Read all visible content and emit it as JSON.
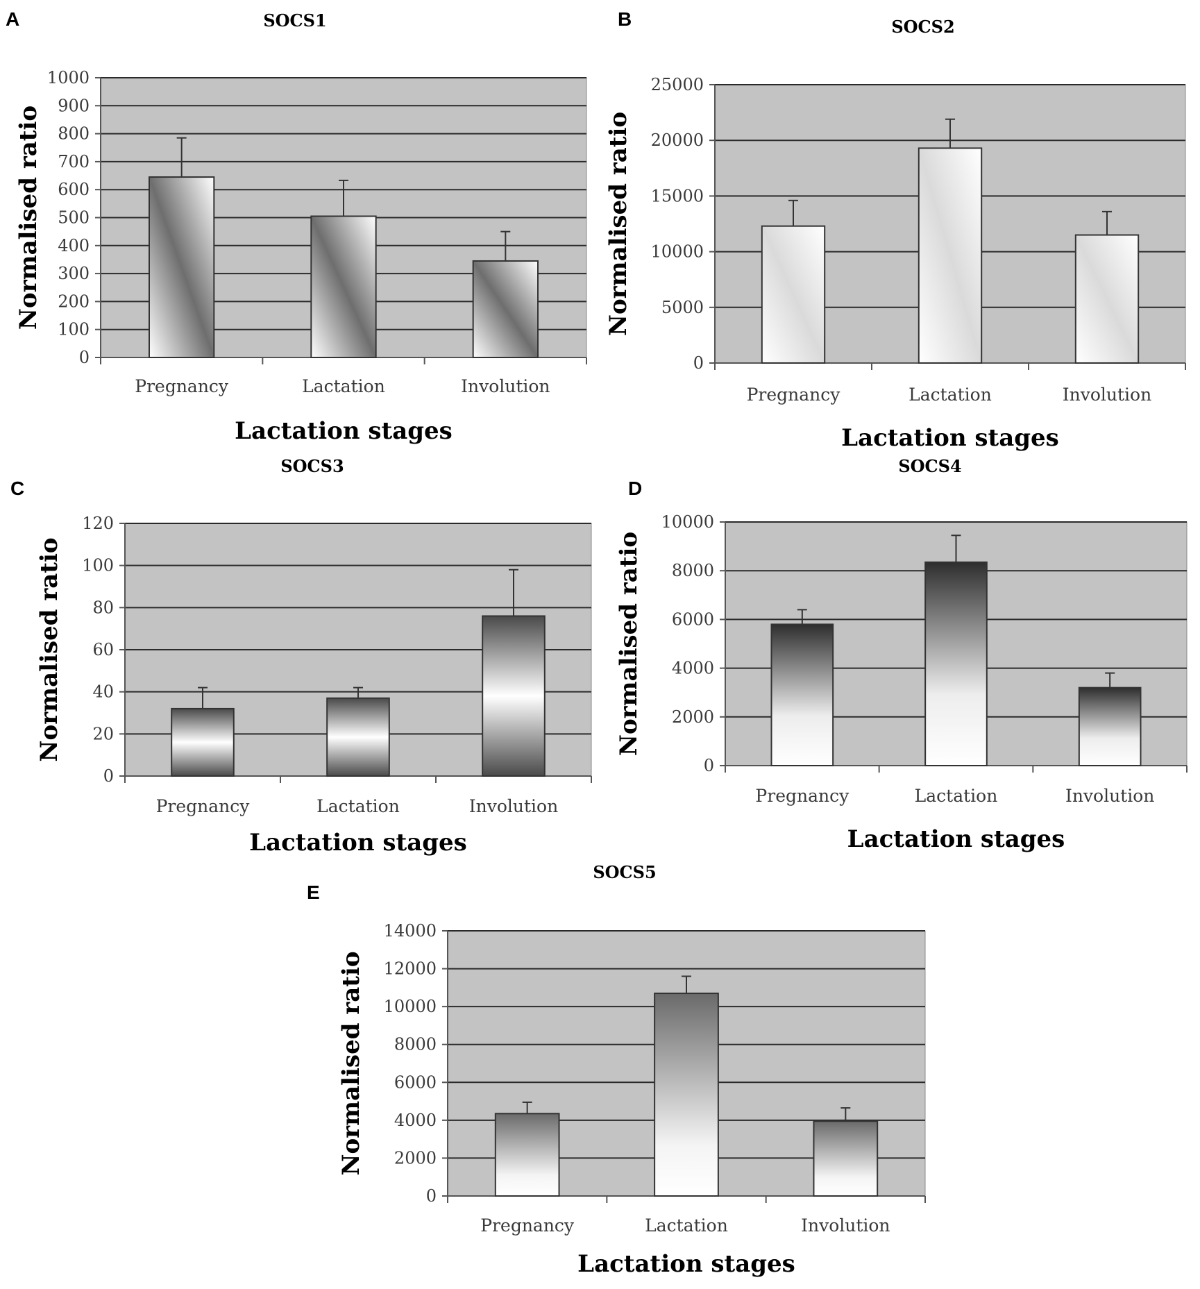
{
  "figure": {
    "layout": "five bar-chart panels A–E"
  },
  "chart_data": [
    {
      "panel": "A",
      "type": "bar",
      "title": "SOCS1",
      "categories": [
        "Pregnancy",
        "Lactation",
        "Involution"
      ],
      "values": [
        645,
        505,
        345
      ],
      "errors": [
        140,
        128,
        105
      ],
      "xlabel": "Lactation stages",
      "ylabel": "Normalised ratio",
      "ylim": [
        0,
        1000
      ],
      "yticks": [
        "0",
        "100",
        "200",
        "300",
        "400",
        "500",
        "600",
        "700",
        "800",
        "900",
        "1000"
      ],
      "fill": "diagonal-gray",
      "grid": true
    },
    {
      "panel": "B",
      "type": "bar",
      "title": "SOCS2",
      "categories": [
        "Pregnancy",
        "Lactation",
        "Involution"
      ],
      "values": [
        12300,
        19300,
        11500
      ],
      "errors": [
        2300,
        2600,
        2100
      ],
      "xlabel": "Lactation stages",
      "ylabel": "Normalised ratio",
      "ylim": [
        0,
        25000
      ],
      "yticks": [
        "0",
        "5000",
        "10000",
        "15000",
        "20000",
        "25000"
      ],
      "fill": "diagonal-light",
      "grid": true
    },
    {
      "panel": "C",
      "type": "bar",
      "title": "SOCS3",
      "categories": [
        "Pregnancy",
        "Lactation",
        "Involution"
      ],
      "values": [
        32,
        37,
        76
      ],
      "errors": [
        10,
        5,
        22
      ],
      "xlabel": "Lactation stages",
      "ylabel": "Normalised ratio",
      "ylim": [
        0,
        120
      ],
      "yticks": [
        "0",
        "20",
        "40",
        "60",
        "80",
        "100",
        "120"
      ],
      "fill": "vertical-band",
      "grid": true
    },
    {
      "panel": "D",
      "type": "bar",
      "title": "SOCS4",
      "categories": [
        "Pregnancy",
        "Lactation",
        "Involution"
      ],
      "values": [
        5800,
        8350,
        3200
      ],
      "errors": [
        600,
        1100,
        600
      ],
      "xlabel": "Lactation stages",
      "ylabel": "Normalised ratio",
      "ylim": [
        0,
        10000
      ],
      "yticks": [
        "0",
        "2000",
        "4000",
        "6000",
        "8000",
        "10000"
      ],
      "fill": "dark-top",
      "grid": true
    },
    {
      "panel": "E",
      "type": "bar",
      "title": "SOCS5",
      "categories": [
        "Pregnancy",
        "Lactation",
        "Involution"
      ],
      "values": [
        4350,
        10700,
        3950
      ],
      "errors": [
        600,
        900,
        700
      ],
      "xlabel": "Lactation stages",
      "ylabel": "Normalised ratio",
      "ylim": [
        0,
        14000
      ],
      "yticks": [
        "0",
        "2000",
        "4000",
        "6000",
        "8000",
        "10000",
        "12000",
        "14000"
      ],
      "fill": "mid-top",
      "grid": true
    }
  ]
}
